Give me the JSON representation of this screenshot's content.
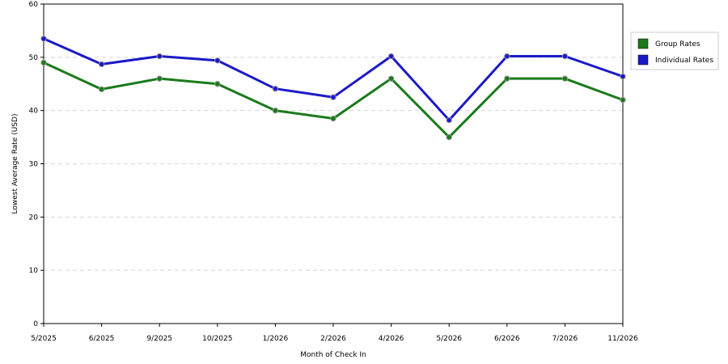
{
  "chart_data": {
    "type": "line",
    "title": "",
    "xlabel": "Month of Check In",
    "ylabel": "Lowest Average Rate (USD)",
    "categories": [
      "5/2025",
      "6/2025",
      "9/2025",
      "10/2025",
      "1/2026",
      "2/2026",
      "4/2026",
      "5/2026",
      "6/2026",
      "7/2026",
      "11/2026"
    ],
    "ylim": [
      0,
      60
    ],
    "yticks": [
      "0",
      "10",
      "20",
      "30",
      "40",
      "50",
      "60"
    ],
    "grid": "horizontal-dashed",
    "legend_position": "right",
    "series": [
      {
        "name": "Group Rates",
        "color": "#1a7a1a",
        "values": [
          49,
          44,
          46,
          45,
          40,
          38.5,
          46,
          35,
          46,
          46,
          42
        ]
      },
      {
        "name": "Individual Rates",
        "color": "#1a1ac8",
        "values": [
          53.5,
          48.7,
          50.2,
          49.4,
          44.1,
          42.5,
          50.2,
          38.2,
          50.2,
          50.2,
          46.4
        ]
      }
    ]
  }
}
